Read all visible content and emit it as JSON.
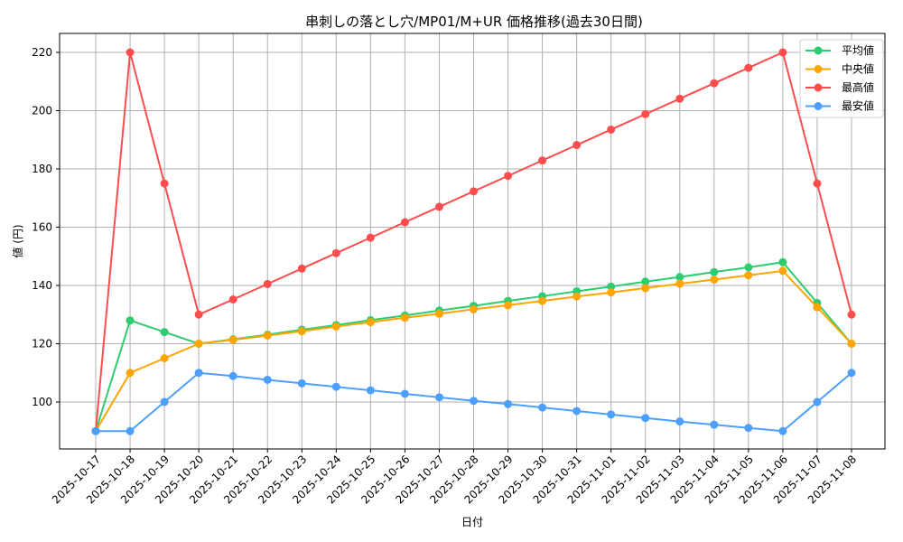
{
  "chart_data": {
    "type": "line",
    "title": "串刺しの落とし穴/MP01/M+UR 価格推移(過去30日間)",
    "xlabel": "日付",
    "ylabel": "値 (円)",
    "ylim": [
      84,
      227
    ],
    "yticks": [
      100,
      120,
      140,
      160,
      180,
      200,
      220
    ],
    "grid": true,
    "legend_position": "upper right",
    "x": [
      "2025-10-17",
      "2025-10-18",
      "2025-10-19",
      "2025-10-20",
      "2025-10-21",
      "2025-10-22",
      "2025-10-23",
      "2025-10-24",
      "2025-10-25",
      "2025-10-26",
      "2025-10-27",
      "2025-10-28",
      "2025-10-29",
      "2025-10-30",
      "2025-10-31",
      "2025-11-01",
      "2025-11-02",
      "2025-11-03",
      "2025-11-04",
      "2025-11-05",
      "2025-11-06",
      "2025-11-07",
      "2025-11-08"
    ],
    "series": [
      {
        "name": "平均値",
        "color": "#2ecc71",
        "values": [
          90,
          128,
          124,
          120,
          121.5,
          123.1,
          124.8,
          126.4,
          128.1,
          129.7,
          131.4,
          133,
          134.7,
          136.3,
          138,
          139.6,
          141.3,
          142.9,
          144.6,
          146.2,
          148,
          134,
          120
        ]
      },
      {
        "name": "中央値",
        "color": "#ffa500",
        "values": [
          90,
          110,
          115,
          120,
          121.3,
          122.8,
          124.3,
          125.9,
          127.4,
          128.9,
          130.3,
          131.8,
          133.2,
          134.7,
          136.2,
          137.6,
          139.1,
          140.6,
          142,
          143.5,
          145,
          132.5,
          120
        ]
      },
      {
        "name": "最高値",
        "color": "#ff4d4d",
        "values": [
          90,
          220,
          175,
          130,
          135.2,
          140.5,
          145.8,
          151.1,
          156.4,
          161.7,
          167,
          172.3,
          177.6,
          182.9,
          188.2,
          193.5,
          198.8,
          204.1,
          209.4,
          214.7,
          220,
          175,
          130
        ]
      },
      {
        "name": "最安値",
        "color": "#4d9fff",
        "values": [
          90,
          90,
          100,
          110,
          108.9,
          107.6,
          106.4,
          105.2,
          104,
          102.8,
          101.6,
          100.4,
          99.3,
          98.1,
          96.9,
          95.7,
          94.5,
          93.3,
          92.2,
          91.1,
          90,
          100,
          110
        ]
      }
    ]
  }
}
